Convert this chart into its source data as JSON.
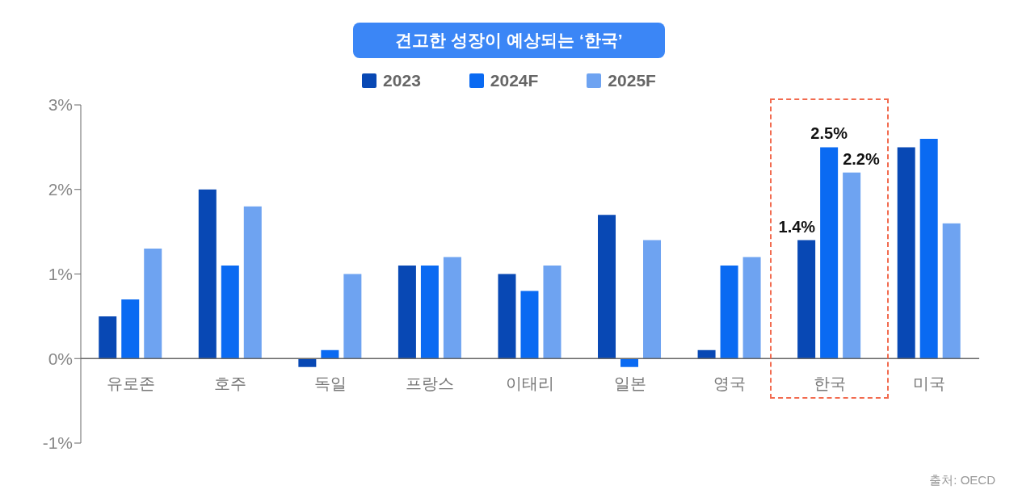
{
  "chart_data": {
    "type": "bar",
    "title": "견고한 성장이 예상되는 ‘한국’",
    "categories": [
      "유로존",
      "호주",
      "독일",
      "프랑스",
      "이태리",
      "일본",
      "영국",
      "한국",
      "미국"
    ],
    "series": [
      {
        "name": "2023",
        "color": "#0848b4",
        "values": [
          0.5,
          2.0,
          -0.1,
          1.1,
          1.0,
          1.7,
          0.1,
          1.4,
          2.5
        ],
        "value_labels": [
          null,
          null,
          null,
          null,
          null,
          null,
          null,
          "1.4%",
          null
        ]
      },
      {
        "name": "2024F",
        "color": "#0a6af2",
        "values": [
          0.7,
          1.1,
          0.1,
          1.1,
          0.8,
          -0.1,
          1.1,
          2.5,
          2.6
        ],
        "value_labels": [
          null,
          null,
          null,
          null,
          null,
          null,
          null,
          "2.5%",
          null
        ]
      },
      {
        "name": "2025F",
        "color": "#6ea3f1",
        "values": [
          1.3,
          1.8,
          1.0,
          1.2,
          1.1,
          1.4,
          1.2,
          2.2,
          1.6
        ],
        "value_labels": [
          null,
          null,
          null,
          null,
          null,
          null,
          null,
          "2.2%",
          null
        ]
      }
    ],
    "ylim": [
      -1,
      3
    ],
    "yticks": [
      {
        "value": -1,
        "label": "-1%"
      },
      {
        "value": 0,
        "label": "0%"
      },
      {
        "value": 1,
        "label": "1%"
      },
      {
        "value": 2,
        "label": "2%"
      },
      {
        "value": 3,
        "label": "3%"
      }
    ],
    "legend": "top",
    "grid": false,
    "annotations": [
      "출처: OECD"
    ]
  }
}
